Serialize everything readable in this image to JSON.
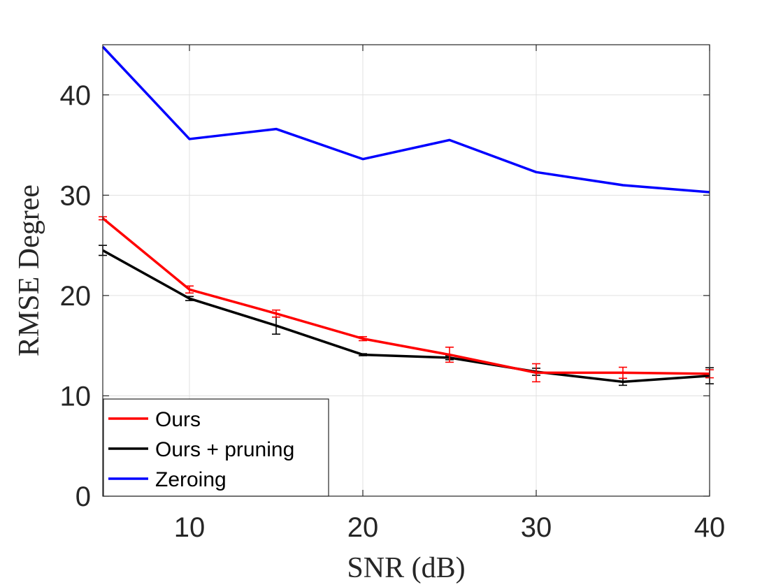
{
  "chart_data": {
    "type": "line",
    "xlabel": "SNR (dB)",
    "ylabel": "RMSE Degree",
    "xlim": [
      5,
      40
    ],
    "ylim": [
      0,
      45
    ],
    "xticks": [
      10,
      20,
      30,
      40
    ],
    "yticks": [
      0,
      10,
      20,
      30,
      40
    ],
    "grid": true,
    "legend_position": "bottom-left",
    "x": [
      5,
      10,
      15,
      20,
      25,
      30,
      35,
      40
    ],
    "series": [
      {
        "name": "Ours",
        "color": "#ff0000",
        "values": [
          27.7,
          20.6,
          18.2,
          15.7,
          14.1,
          12.3,
          12.3,
          12.2
        ],
        "error": [
          0.15,
          0.35,
          0.35,
          0.2,
          0.75,
          0.9,
          0.55,
          0.4
        ]
      },
      {
        "name": "Ours + pruning",
        "color": "#000000",
        "values": [
          24.5,
          19.7,
          17.0,
          14.1,
          13.8,
          12.4,
          11.4,
          12.0
        ],
        "error": [
          0.5,
          0.2,
          0.85,
          0.1,
          0.2,
          0.35,
          0.35,
          0.8
        ]
      },
      {
        "name": "Zeroing",
        "color": "#0000ff",
        "values": [
          44.8,
          35.6,
          36.6,
          33.6,
          35.5,
          32.3,
          31.0,
          30.3
        ]
      }
    ]
  }
}
